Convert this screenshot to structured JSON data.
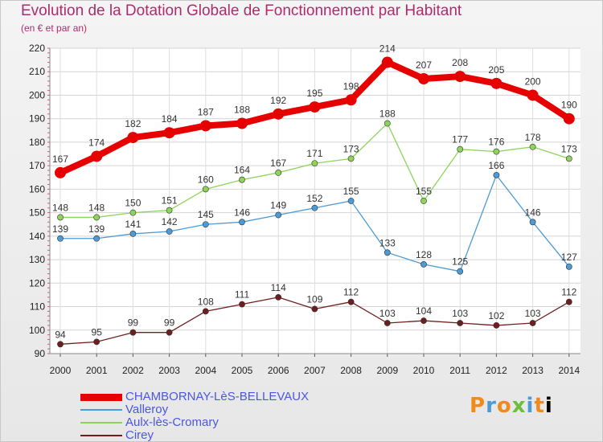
{
  "chart_data": {
    "type": "line",
    "title": "Evolution de la Dotation Globale de Fonctionnement par Habitant",
    "subtitle": "(en € et par an)",
    "x": [
      "2000",
      "2001",
      "2002",
      "2003",
      "2004",
      "2005",
      "2006",
      "2007",
      "2008",
      "2009",
      "2010",
      "2011",
      "2012",
      "2013",
      "2014"
    ],
    "ylim": [
      90,
      220
    ],
    "yticks": [
      90,
      100,
      110,
      120,
      130,
      140,
      150,
      160,
      170,
      180,
      190,
      200,
      210,
      220
    ],
    "grid": true,
    "series": [
      {
        "name": "CHAMBORNAY-LèS-BELLEVAUX",
        "color": "#e60000",
        "values": [
          167,
          174,
          182,
          184,
          187,
          188,
          192,
          195,
          198,
          214,
          207,
          208,
          205,
          200,
          190
        ]
      },
      {
        "name": "Valleroy",
        "color": "#4c9bd6",
        "values": [
          139,
          139,
          141,
          142,
          145,
          146,
          149,
          152,
          155,
          133,
          128,
          125,
          166,
          146,
          127
        ]
      },
      {
        "name": "Aulx-lès-Cromary",
        "color": "#8ed45a",
        "values": [
          148,
          148,
          150,
          151,
          160,
          164,
          167,
          171,
          173,
          188,
          155,
          177,
          176,
          178,
          173
        ]
      },
      {
        "name": "Cirey",
        "color": "#6e1e1e",
        "values": [
          94,
          95,
          99,
          99,
          108,
          111,
          114,
          109,
          112,
          103,
          104,
          103,
          102,
          103,
          112
        ]
      }
    ]
  },
  "logo": {
    "letters": [
      "P",
      "r",
      "o",
      "x",
      "i",
      "t",
      "i"
    ]
  }
}
